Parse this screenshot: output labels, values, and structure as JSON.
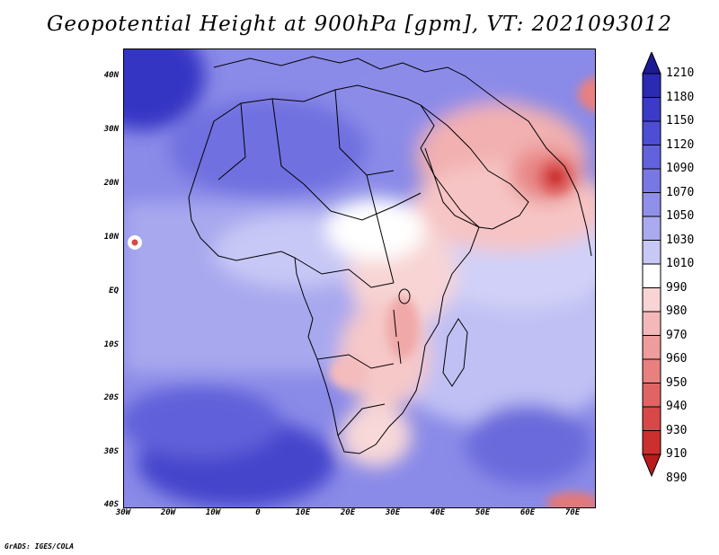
{
  "title": "Geopotential Height at 900hPa [gpm], VT: 2021093012",
  "footer": "GrADS: IGES/COLA",
  "map": {
    "region": "Africa, Arabian Peninsula and Indian Ocean",
    "lon_range": [
      -30,
      75
    ],
    "lat_range": [
      -40,
      45
    ],
    "lat_labels": [
      "40N",
      "30N",
      "20N",
      "10N",
      "EQ",
      "10S",
      "20S",
      "30S",
      "40S"
    ],
    "lon_labels": [
      "30W",
      "20W",
      "10W",
      "0",
      "10E",
      "20E",
      "30E",
      "40E",
      "50E",
      "60E",
      "70E"
    ]
  },
  "colorbar": {
    "levels": [
      "1210",
      "1180",
      "1150",
      "1120",
      "1090",
      "1070",
      "1050",
      "1030",
      "1010",
      "990",
      "980",
      "970",
      "960",
      "950",
      "940",
      "930",
      "910",
      "890"
    ],
    "colors": [
      "#1c1a96",
      "#2b2ab3",
      "#3b3bc8",
      "#4d4dd6",
      "#6262de",
      "#7878e4",
      "#9090ea",
      "#aaaaf0",
      "#c8c8f6",
      "#ffffff",
      "#f8d4d4",
      "#f4b8b8",
      "#ee9c9c",
      "#e88080",
      "#e06464",
      "#d84848",
      "#cc2f2f",
      "#b81c1c"
    ]
  }
}
